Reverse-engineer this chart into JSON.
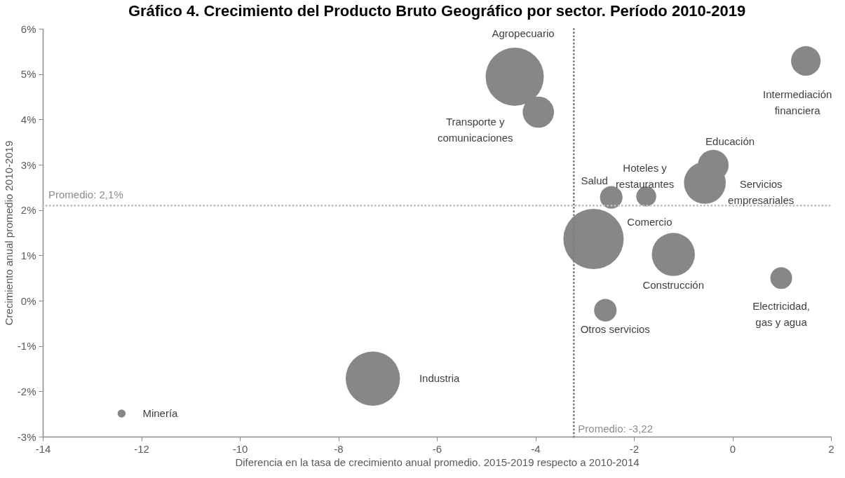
{
  "chart_data": {
    "type": "bubble",
    "title": "Gráfico 4. Crecimiento del Producto Bruto Geográfico por sector. Período 2010-2019",
    "xlabel": "Diferencia en la tasa de crecimiento anual promedio. 2015-2019 respecto a 2010-2014",
    "ylabel": "Crecimiento anual promedio 2010-2019",
    "xlim": [
      -14,
      2
    ],
    "xticks": [
      -14,
      -12,
      -10,
      -8,
      -6,
      -4,
      -2,
      0,
      2
    ],
    "ylim": [
      -3,
      6
    ],
    "yticks": [
      {
        "value": -3,
        "label": "-3%"
      },
      {
        "value": -2,
        "label": "-2%"
      },
      {
        "value": -1,
        "label": "-1%"
      },
      {
        "value": 0,
        "label": "0%"
      },
      {
        "value": 1,
        "label": "1%"
      },
      {
        "value": 2,
        "label": "2%"
      },
      {
        "value": 3,
        "label": "3%"
      },
      {
        "value": 4,
        "label": "4%"
      },
      {
        "value": 5,
        "label": "5%"
      },
      {
        "value": 6,
        "label": "6%"
      }
    ],
    "marker": "circle",
    "series": [
      {
        "name": "Agropecuario",
        "color": "#878787",
        "x": [
          -4.42
        ],
        "values": [
          4.94
        ],
        "sizes": [
          0.93
        ]
      },
      {
        "name": "Transporte y comunicaciones",
        "color": "#878787",
        "x": [
          -3.94
        ],
        "values": [
          4.16
        ],
        "sizes": [
          0.27
        ]
      },
      {
        "name": "Intermediación financiera",
        "color": "#878787",
        "x": [
          1.49
        ],
        "values": [
          5.29
        ],
        "sizes": [
          0.24
        ]
      },
      {
        "name": "Servicios empresariales",
        "color": "#878787",
        "x": [
          -0.56
        ],
        "values": [
          2.6
        ],
        "sizes": [
          0.48
        ]
      },
      {
        "name": "Educación",
        "color": "#878787",
        "x": [
          -0.39
        ],
        "values": [
          2.99
        ],
        "sizes": [
          0.26
        ]
      },
      {
        "name": "Salud",
        "color": "#878787",
        "x": [
          -2.46
        ],
        "values": [
          2.28
        ],
        "sizes": [
          0.14
        ]
      },
      {
        "name": "Hoteles y restaurantes",
        "color": "#878787",
        "x": [
          -1.75
        ],
        "values": [
          2.3
        ],
        "sizes": [
          0.11
        ]
      },
      {
        "name": "Comercio",
        "color": "#878787",
        "x": [
          -2.82
        ],
        "values": [
          1.36
        ],
        "sizes": [
          1
        ]
      },
      {
        "name": "Construcción",
        "color": "#878787",
        "x": [
          -1.2
        ],
        "values": [
          1.02
        ],
        "sizes": [
          0.51
        ]
      },
      {
        "name": "Electricidad, gas y agua",
        "color": "#878787",
        "x": [
          0.99
        ],
        "values": [
          0.5
        ],
        "sizes": [
          0.13
        ]
      },
      {
        "name": "Otros servicios",
        "color": "#878787",
        "x": [
          -2.58
        ],
        "values": [
          -0.21
        ],
        "sizes": [
          0.14
        ]
      },
      {
        "name": "Industria",
        "color": "#878787",
        "x": [
          -7.3
        ],
        "values": [
          -1.72
        ],
        "sizes": [
          0.81
        ]
      },
      {
        "name": "Minería",
        "color": "#878787",
        "x": [
          -12.4
        ],
        "values": [
          -2.49
        ],
        "sizes": [
          0.018
        ]
      }
    ],
    "ref_lines": [
      {
        "axis": "x",
        "value": -3.22,
        "label": "Promedio: -3,22",
        "color": "#7f7f7f",
        "line_style": "dotted"
      },
      {
        "axis": "y",
        "value": 2.1,
        "label": "Promedio: 2,1%",
        "color": "#bfbfbf",
        "line_style": "dotted"
      }
    ]
  }
}
